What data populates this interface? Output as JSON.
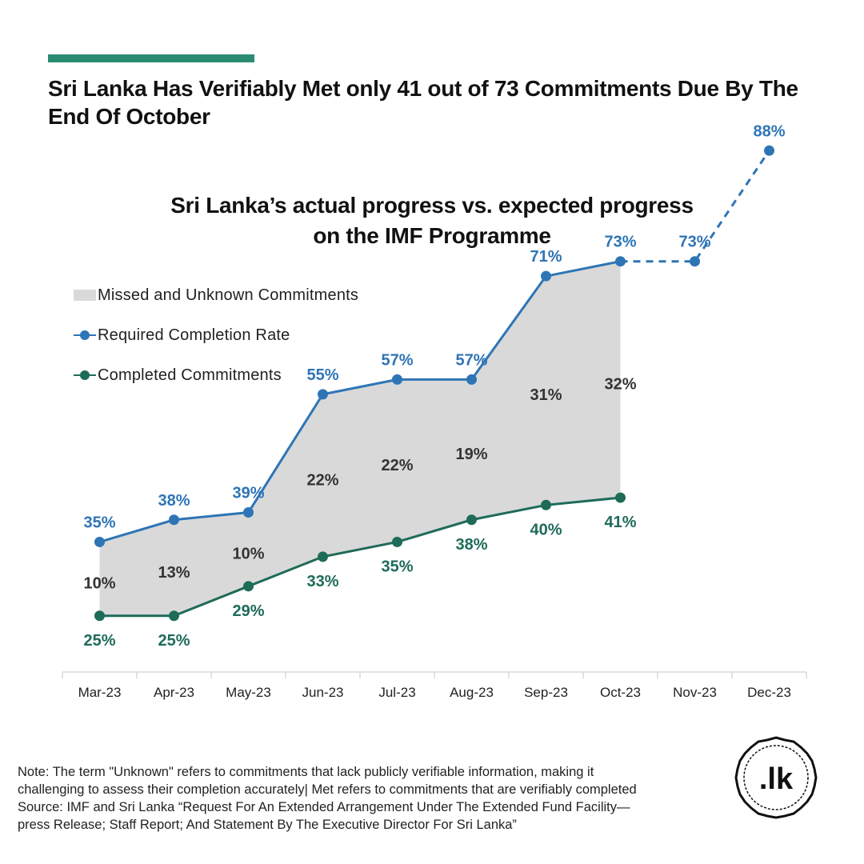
{
  "header": {
    "accent_color": "#2a8b73",
    "title": "Sri Lanka Has Verifiably Met only 41 out of 73 Commitments Due By The End Of October"
  },
  "chart_data": {
    "type": "line",
    "title_lines": [
      "Sri Lanka’s actual progress vs. expected progress",
      "on the IMF Programme"
    ],
    "categories": [
      "Mar-23",
      "Apr-23",
      "May-23",
      "Jun-23",
      "Jul-23",
      "Aug-23",
      "Sep-23",
      "Oct-23",
      "Nov-23",
      "Dec-23"
    ],
    "ylim": [
      0,
      100
    ],
    "grid": false,
    "legend_position": "top-left",
    "legend": [
      "Missed and Unknown Commitments",
      "Required Completion Rate",
      "Completed Commitments"
    ],
    "series": [
      {
        "name": "Required Completion Rate",
        "color": "#2e75b6",
        "values": [
          35,
          38,
          39,
          55,
          57,
          57,
          71,
          73,
          73,
          88
        ],
        "labels": [
          "35%",
          "38%",
          "39%",
          "55%",
          "57%",
          "57%",
          "71%",
          "73%",
          "73%",
          "88%"
        ],
        "projected_from_index": 7
      },
      {
        "name": "Completed Commitments",
        "color": "#1e6b58",
        "values": [
          25,
          25,
          29,
          33,
          35,
          38,
          40,
          41,
          null,
          null
        ],
        "labels": [
          "25%",
          "25%",
          "29%",
          "33%",
          "35%",
          "38%",
          "40%",
          "41%",
          null,
          null
        ]
      },
      {
        "name": "Missed and Unknown Commitments",
        "type": "area",
        "color": "#d9d9d9",
        "values": [
          10,
          13,
          10,
          22,
          22,
          19,
          31,
          32,
          null,
          null
        ],
        "labels": [
          "10%",
          "13%",
          "10%",
          "22%",
          "22%",
          "19%",
          "31%",
          "32%",
          null,
          null
        ]
      }
    ]
  },
  "footer": {
    "note": "Note: The term \"Unknown\" refers to commitments that lack publicly verifiable information, making it challenging to assess their completion accurately| Met refers to commitments that are verifiably completed",
    "source": "Source: IMF and Sri Lanka “Request For An Extended Arrangement Under The Extended Fund Facility—press Release; Staff Report; And Statement By The Executive Director For Sri Lanka”"
  },
  "logo": {
    "text": ".lk"
  }
}
